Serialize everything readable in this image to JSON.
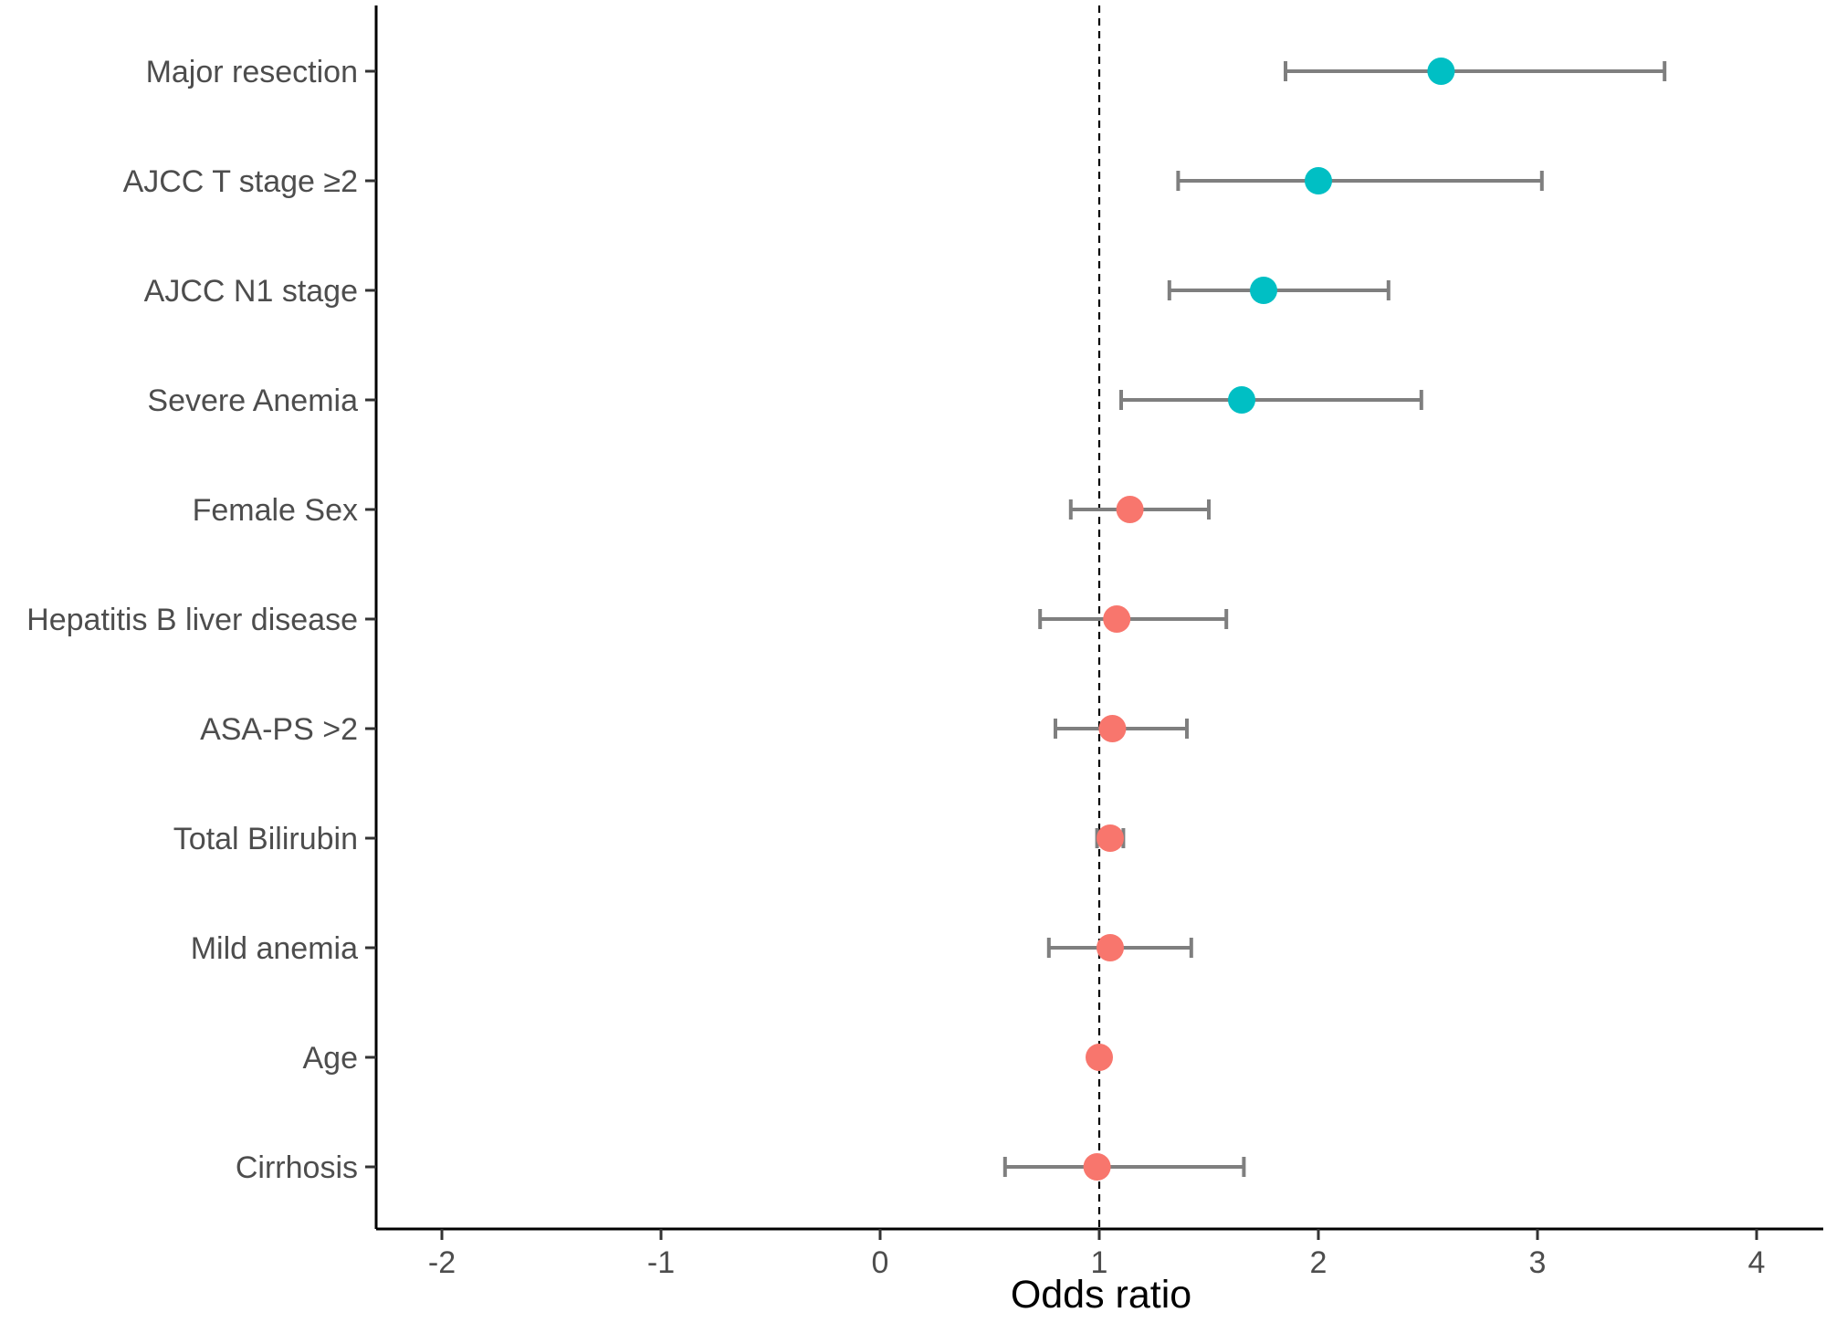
{
  "chart_data": {
    "type": "forest",
    "xlabel": "Odds ratio",
    "xlim": [
      -2.3,
      4.3
    ],
    "x_ticks": [
      -2,
      -1,
      0,
      1,
      2,
      3,
      4
    ],
    "x_tick_labels": [
      "-2",
      "-1",
      "0",
      "1",
      "2",
      "3",
      "4"
    ],
    "reference_line": 1,
    "grid": false,
    "legend": "none",
    "colors": {
      "significant": "#00BFC4",
      "not_significant": "#F8766D",
      "error_bar": "#7f7f7f",
      "axis": "#000000",
      "reference": "#000000"
    },
    "rows": [
      {
        "label": "Major resection",
        "or": 2.56,
        "lo": 1.85,
        "hi": 3.58,
        "group": "significant"
      },
      {
        "label": "AJCC T stage ≥2",
        "or": 2.0,
        "lo": 1.36,
        "hi": 3.02,
        "group": "significant"
      },
      {
        "label": "AJCC N1 stage",
        "or": 1.75,
        "lo": 1.32,
        "hi": 2.32,
        "group": "significant"
      },
      {
        "label": "Severe Anemia",
        "or": 1.65,
        "lo": 1.1,
        "hi": 2.47,
        "group": "significant"
      },
      {
        "label": "Female Sex",
        "or": 1.14,
        "lo": 0.87,
        "hi": 1.5,
        "group": "not_significant"
      },
      {
        "label": "Hepatitis B liver disease",
        "or": 1.08,
        "lo": 0.73,
        "hi": 1.58,
        "group": "not_significant"
      },
      {
        "label": "ASA-PS >2",
        "or": 1.06,
        "lo": 0.8,
        "hi": 1.4,
        "group": "not_significant"
      },
      {
        "label": "Total Bilirubin",
        "or": 1.05,
        "lo": 0.99,
        "hi": 1.11,
        "group": "not_significant"
      },
      {
        "label": "Mild anemia",
        "or": 1.05,
        "lo": 0.77,
        "hi": 1.42,
        "group": "not_significant"
      },
      {
        "label": "Age",
        "or": 1.0,
        "lo": 0.99,
        "hi": 1.01,
        "group": "not_significant"
      },
      {
        "label": "Cirrhosis",
        "or": 0.99,
        "lo": 0.57,
        "hi": 1.66,
        "group": "not_significant"
      }
    ]
  }
}
